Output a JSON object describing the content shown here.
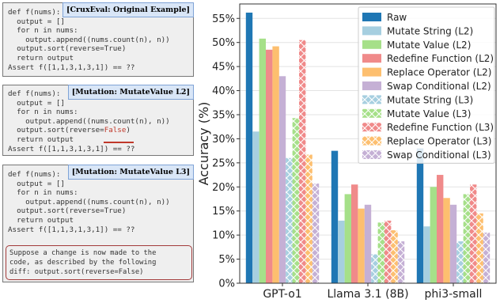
{
  "examples": [
    {
      "tag": "[CruxEval: Original Example]",
      "code_before": "def f(nums):\n  output = []\n  for n in nums:\n    output.append((nums.count(n), n))\n  output.sort(reverse=True)\n  return output\nAssert f([1,1,3,1,3,1]) == ??",
      "code_highlight": "",
      "code_after": ""
    },
    {
      "tag": "[Mutation: MutateValue L2]",
      "code_before": "def f(nums):\n  output = []\n  for n in nums:\n    output.append((nums.count(n), n))\n  output.sort(reverse=",
      "code_highlight": "False",
      "code_after": ")\n  return output\nAssert f([1,1,3,1,3,1]) == ??"
    },
    {
      "tag": "[Mutation: MutateValue L3]",
      "code_before": "def f(nums):\n  output = []\n  for n in nums:\n    output.append((nums.count(n), n))\n  output.sort(reverse=True)\n  return output\nAssert f([1,1,3,1,3,1]) == ??",
      "code_highlight": "",
      "code_after": "",
      "note": "Suppose a change is now made to the\ncode, as described by the following\ndiff: output.sort(reverse=False)"
    }
  ],
  "chart_data": {
    "type": "bar",
    "categories": [
      "GPT-o1",
      "Llama 3.1 (8B)",
      "phi3-small"
    ],
    "ylabel": "Accuracy (%)",
    "ylim": [
      0,
      58
    ],
    "yticks": [
      "0%",
      "5%",
      "10%",
      "15%",
      "20%",
      "25%",
      "30%",
      "35%",
      "40%",
      "45%",
      "50%",
      "55%"
    ],
    "grid": true,
    "legend_position": "top-right",
    "series": [
      {
        "name": "Raw",
        "color": "#1f77b4",
        "hatch": false,
        "values": [
          56.2,
          27.5,
          28.0
        ]
      },
      {
        "name": "Mutate String (L2)",
        "color": "#a6cfe0",
        "hatch": false,
        "values": [
          31.5,
          13.0,
          11.8
        ]
      },
      {
        "name": "Mutate Value (L2)",
        "color": "#a6e089",
        "hatch": false,
        "values": [
          50.8,
          18.5,
          20.0
        ]
      },
      {
        "name": "Redefine Function (L2)",
        "color": "#f08a8a",
        "hatch": false,
        "values": [
          48.5,
          20.5,
          22.5
        ]
      },
      {
        "name": "Replace Operator (L2)",
        "color": "#fdbf6f",
        "hatch": false,
        "values": [
          49.2,
          15.5,
          17.7
        ]
      },
      {
        "name": "Swap Conditional (L2)",
        "color": "#c5b0d5",
        "hatch": false,
        "values": [
          43.0,
          16.3,
          16.3
        ]
      },
      {
        "name": "Mutate String (L3)",
        "color": "#a6cfe0",
        "hatch": true,
        "values": [
          26.0,
          6.0,
          8.7
        ]
      },
      {
        "name": "Mutate Value (L3)",
        "color": "#a6e089",
        "hatch": true,
        "values": [
          34.3,
          12.6,
          18.5
        ]
      },
      {
        "name": "Redefine Function (L3)",
        "color": "#f08a8a",
        "hatch": true,
        "values": [
          50.5,
          13.0,
          20.5
        ]
      },
      {
        "name": "Replace Operator (L3)",
        "color": "#fdbf6f",
        "hatch": true,
        "values": [
          26.7,
          11.0,
          14.5
        ]
      },
      {
        "name": "Swap Conditional (L3)",
        "color": "#c5b0d5",
        "hatch": true,
        "values": [
          20.7,
          8.7,
          10.5
        ]
      }
    ]
  }
}
